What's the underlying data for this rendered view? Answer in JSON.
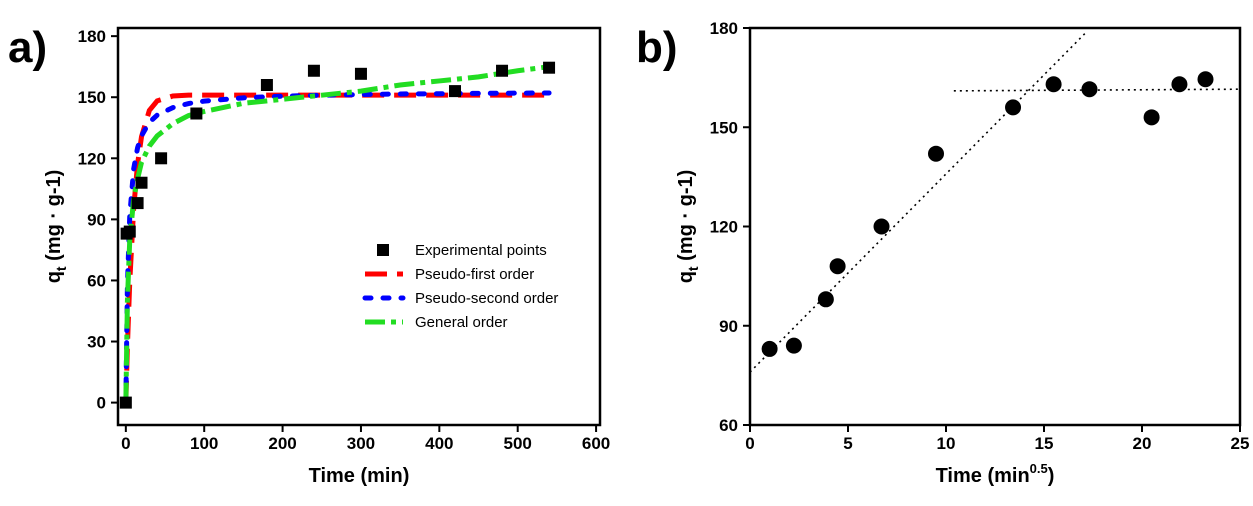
{
  "chart_data": [
    {
      "type": "scatter",
      "panel_label": "a)",
      "x_label": "Time (min)",
      "y_label": {
        "main": "q",
        "sub": "t",
        "rest": " (mg · g-1)"
      },
      "xlim": [
        -10,
        605
      ],
      "ylim": [
        -11,
        184
      ],
      "xticks": [
        0,
        100,
        200,
        300,
        400,
        500,
        600
      ],
      "yticks": [
        0,
        30,
        60,
        90,
        120,
        150,
        180
      ],
      "legend": "lower right",
      "series": [
        {
          "name": "Experimental points",
          "style": "marker",
          "marker": "square",
          "color": "#000000",
          "x": [
            0,
            1,
            5,
            15,
            20,
            45,
            90,
            180,
            240,
            300,
            420,
            480,
            540
          ],
          "values": [
            0,
            83,
            84,
            98,
            108,
            120,
            142,
            156,
            163,
            161.5,
            153,
            163,
            164.5
          ]
        },
        {
          "name": "Pseudo-first order",
          "style": "line",
          "dash": "22,10",
          "color": "#ff0000",
          "x": [
            0,
            2,
            5,
            10,
            15,
            20,
            30,
            40,
            60,
            80,
            100,
            150,
            200,
            250,
            300,
            350,
            400,
            450,
            500,
            540
          ],
          "values": [
            0,
            27.4,
            59.4,
            95.5,
            117.3,
            130.6,
            143.5,
            148.2,
            150.6,
            151,
            151,
            151,
            151,
            151,
            151,
            151,
            151,
            151,
            151,
            151
          ]
        },
        {
          "name": "Pseudo-second order",
          "style": "line",
          "dash": "6,12",
          "color": "#0000ff",
          "x": [
            0,
            2,
            5,
            10,
            15,
            20,
            30,
            40,
            60,
            80,
            100,
            150,
            200,
            250,
            300,
            350,
            400,
            450,
            500,
            540
          ],
          "values": [
            0,
            57.4,
            91.8,
            114.8,
            125.2,
            131.1,
            137.7,
            141.2,
            144.9,
            146.9,
            148.1,
            149.7,
            150.5,
            151,
            151.3,
            151.6,
            151.7,
            151.9,
            152,
            152.1
          ]
        },
        {
          "name": "General order",
          "style": "line",
          "dash": "20,6,5,6",
          "color": "#22dd22",
          "x": [
            0,
            2,
            5,
            10,
            15,
            20,
            30,
            40,
            60,
            80,
            100,
            150,
            200,
            250,
            300,
            350,
            400,
            450,
            500,
            540
          ],
          "values": [
            0,
            50,
            80,
            100,
            110,
            118,
            126,
            131,
            137,
            141,
            143,
            147,
            149,
            151,
            153,
            156,
            158,
            160,
            163,
            165
          ]
        }
      ]
    },
    {
      "type": "scatter",
      "panel_label": "b)",
      "x_label": {
        "main": "Time (min",
        "sup": "0.5",
        "rest": ")"
      },
      "y_label": {
        "main": "q",
        "sub": "t",
        "rest": " (mg · g-1)"
      },
      "xlim": [
        0,
        25
      ],
      "ylim": [
        60,
        180
      ],
      "xticks": [
        0,
        5,
        10,
        15,
        20,
        25
      ],
      "yticks": [
        60,
        90,
        120,
        150,
        180
      ],
      "series": [
        {
          "style": "marker",
          "marker": "circle",
          "color": "#000000",
          "x": [
            1,
            2.24,
            3.87,
            4.47,
            6.71,
            9.49,
            13.42,
            15.49,
            17.32,
            20.49,
            21.91,
            23.24
          ],
          "values": [
            83,
            84,
            98,
            108,
            120,
            142,
            156,
            163,
            161.5,
            153,
            163,
            164.5
          ]
        },
        {
          "style": "line",
          "dash": "2,4",
          "color": "#000000",
          "x": [
            0,
            17.2
          ],
          "values": [
            76,
            179
          ]
        },
        {
          "style": "line",
          "dash": "2,4",
          "color": "#000000",
          "x": [
            10.4,
            25
          ],
          "values": [
            161,
            161.5
          ]
        }
      ]
    }
  ]
}
